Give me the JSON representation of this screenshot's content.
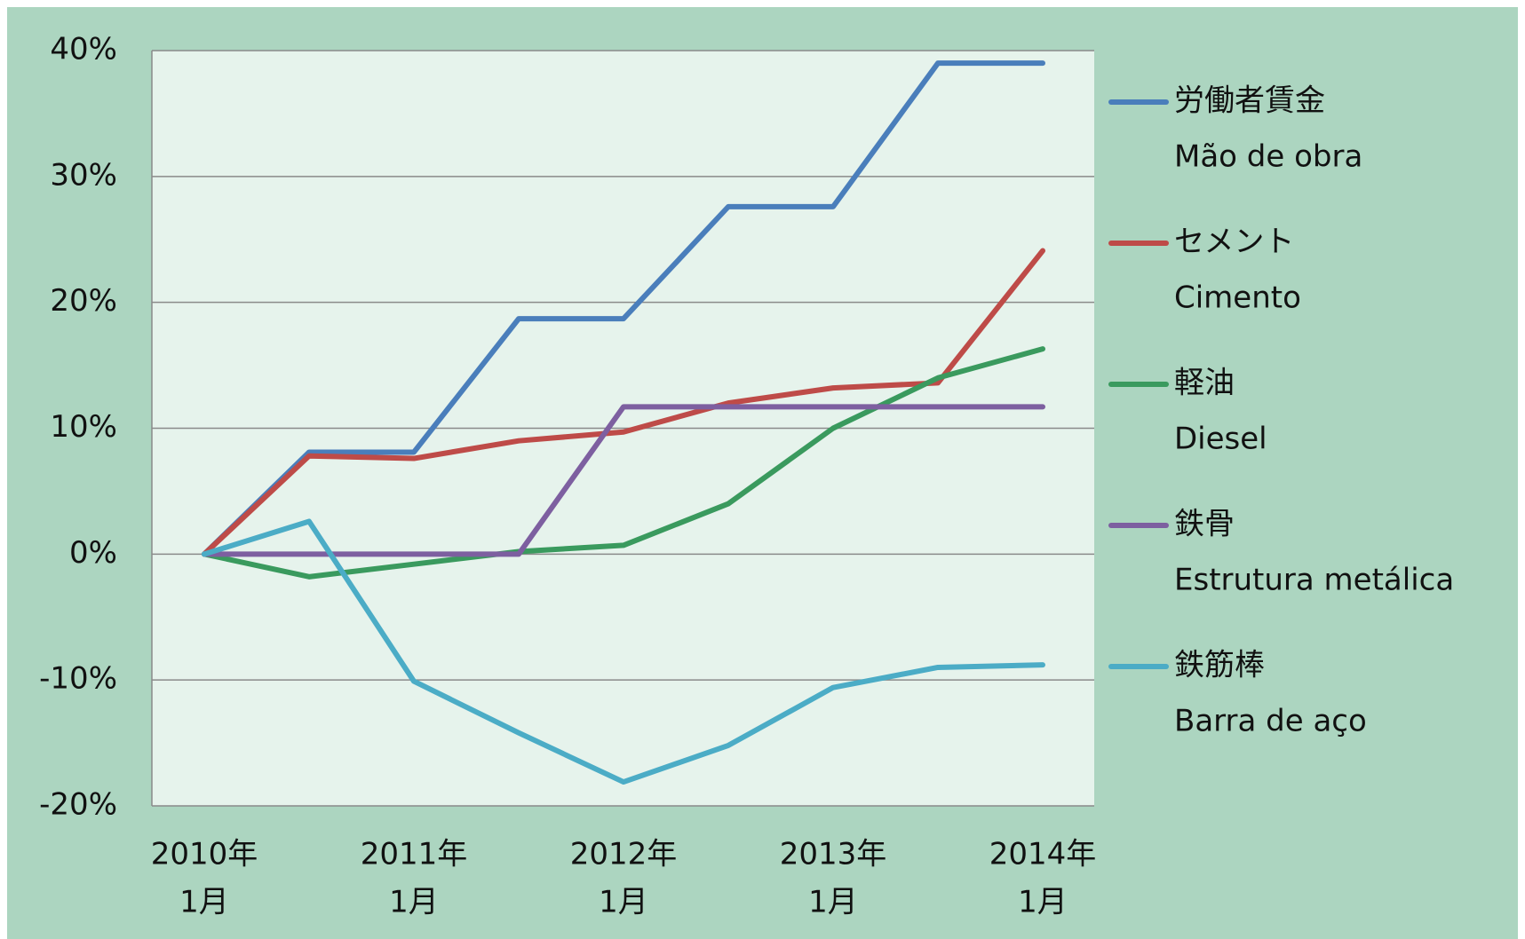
{
  "chart_data": {
    "type": "line",
    "categories": [
      [
        "2010年",
        "1月"
      ],
      null,
      [
        "2011年",
        "1月"
      ],
      null,
      [
        "2012年",
        "1月"
      ],
      null,
      [
        "2013年",
        "1月"
      ],
      null,
      [
        "2014年",
        "1月"
      ]
    ],
    "series": [
      {
        "name": "労働者賃金",
        "name_pt": "Mão de obra",
        "color": "#4a7ebb",
        "values": [
          0,
          8.1,
          8.1,
          18.7,
          18.7,
          27.6,
          27.6,
          39,
          39
        ]
      },
      {
        "name": "セメント",
        "name_pt": "Cimento",
        "color": "#be4b48",
        "values": [
          0,
          7.8,
          7.6,
          9,
          9.7,
          12,
          13.2,
          13.6,
          24.1
        ]
      },
      {
        "name": "軽油",
        "name_pt": "Diesel",
        "color": "#3a9a5e",
        "values": [
          0,
          -1.8,
          -0.8,
          0.2,
          0.7,
          4,
          10,
          14,
          16.3
        ]
      },
      {
        "name": "鉄骨",
        "name_pt": "Estrutura metálica",
        "color": "#7d5fa0",
        "values": [
          0,
          0,
          0,
          0,
          11.7,
          11.7,
          11.7,
          11.7,
          11.7
        ]
      },
      {
        "name": "鉄筋棒",
        "name_pt": "Barra de aço",
        "color": "#4bacc6",
        "values": [
          0,
          2.6,
          -10.1,
          -14.2,
          -18.1,
          -15.2,
          -10.6,
          -9,
          -8.8
        ]
      }
    ],
    "ylim": [
      -20,
      40
    ],
    "yticks": [
      {
        "value": -20,
        "label": "-20%"
      },
      {
        "value": -10,
        "label": "-10%"
      },
      {
        "value": 0,
        "label": "0%"
      },
      {
        "value": 10,
        "label": "10%"
      },
      {
        "value": 20,
        "label": "20%"
      },
      {
        "value": 30,
        "label": "30%"
      },
      {
        "value": 40,
        "label": "40%"
      }
    ],
    "grid": true,
    "legend": "right"
  }
}
